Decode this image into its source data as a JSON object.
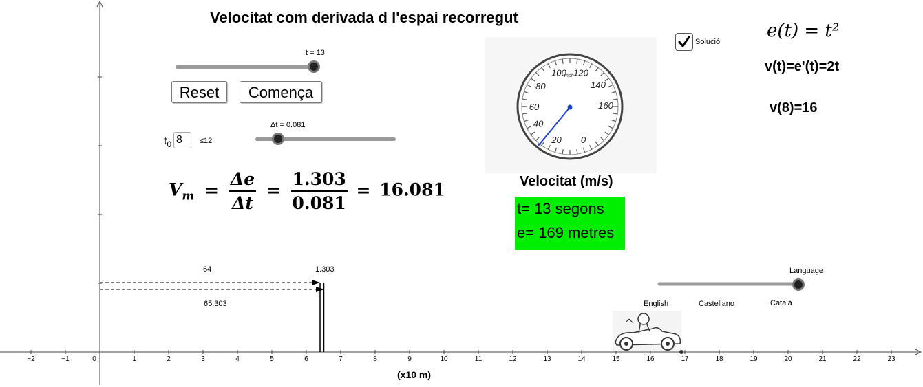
{
  "title": "Velocitat com derivada d l'espai recorregut",
  "time_slider": {
    "label": "t = 13",
    "value": 13,
    "min": 0,
    "max": 13
  },
  "buttons": {
    "reset": "Reset",
    "start": "Comença"
  },
  "t0": {
    "label": "t",
    "subscript": "0",
    "value": "8",
    "constraint": "≤12"
  },
  "dt_slider": {
    "label": "Δt = 0.081",
    "value": 0.081,
    "fraction": 0.17
  },
  "average_velocity": {
    "lhs_var": "V",
    "lhs_sub": "m",
    "num_symbol": "Δe",
    "den_symbol": "Δt",
    "num_value": "1.303",
    "den_value": "0.081",
    "result": "16.081"
  },
  "speedometer": {
    "caption": "Velocitat (m/s)",
    "unit": "mph",
    "dial_labels": [
      "0",
      "20",
      "40",
      "60",
      "80",
      "100",
      "120",
      "140",
      "160"
    ],
    "needle_value": 16
  },
  "status_box": {
    "time": "t= 13 segons",
    "distance": "e= 169 metres"
  },
  "solution": {
    "label": "Solució",
    "checked": true
  },
  "formulas": {
    "position": "e(t) = t²",
    "derivative": "v(t)=e'(t)=2t",
    "evaluated": "v(8)=16"
  },
  "language_slider": {
    "label": "Language",
    "options": [
      "English",
      "Castellano",
      "Català"
    ],
    "selected": "Català"
  },
  "measurements": {
    "top_value": "64",
    "delta_value": "1.303",
    "bottom_value": "65.303"
  },
  "axis": {
    "x_ticks": [
      "-2",
      "-1",
      "0",
      "1",
      "2",
      "3",
      "4",
      "5",
      "6",
      "7",
      "8",
      "9",
      "10",
      "11",
      "12",
      "13",
      "14",
      "15",
      "16",
      "17",
      "18",
      "19",
      "20",
      "21",
      "22",
      "23"
    ],
    "x_label": "(x10 m)",
    "car_position": 16.9
  },
  "colors": {
    "green_box": "#00ee00",
    "needle": "#1a3fd0",
    "slider_track": "#9a9a9a"
  }
}
